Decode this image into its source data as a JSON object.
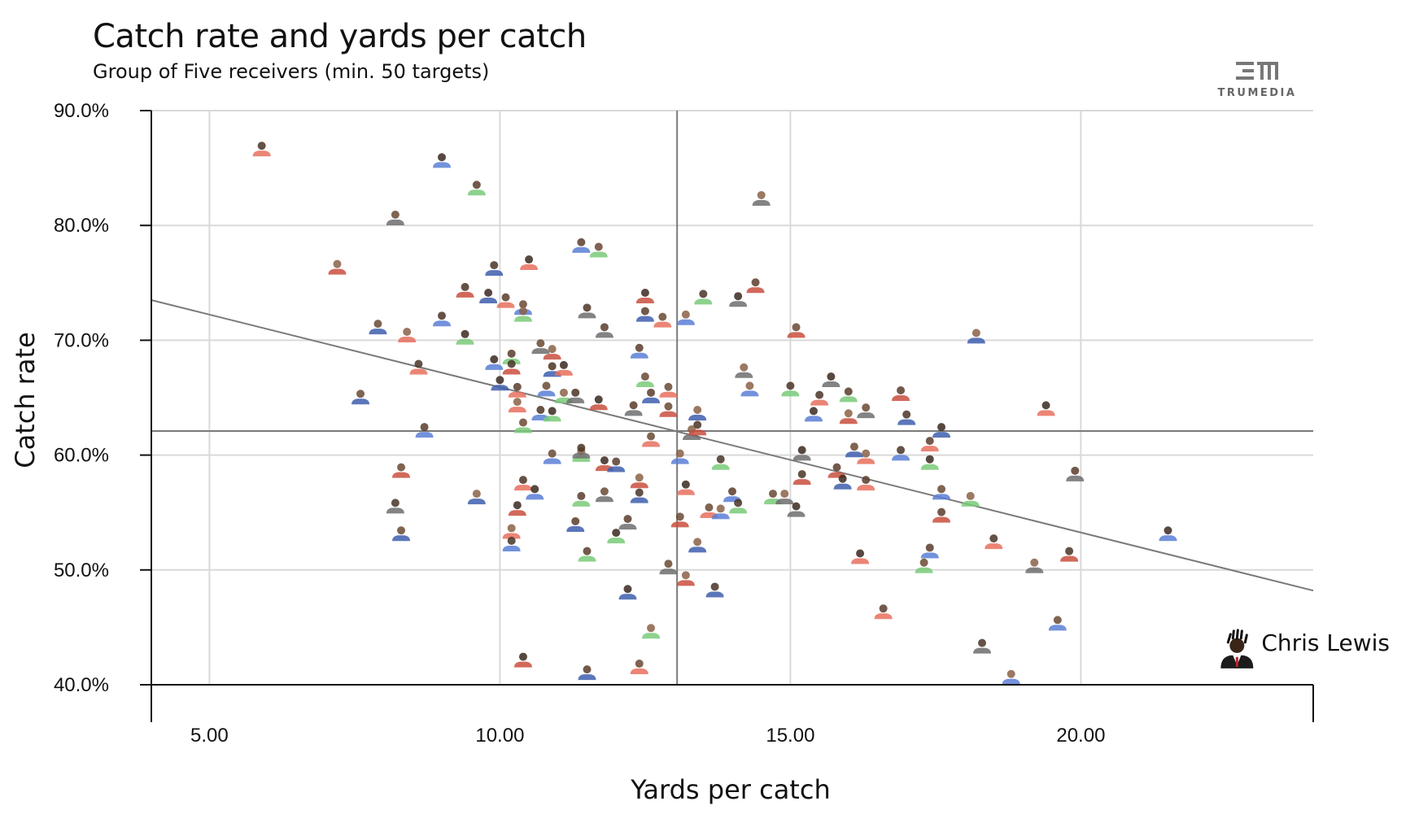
{
  "header": {
    "title": "Catch rate and yards per catch",
    "subtitle": "Group of Five receivers (min. 50 targets)",
    "brand": "TRUMEDIA"
  },
  "colors": {
    "grid": "#d9d9d9",
    "axis": "#111111",
    "reference": "#7a7a7a",
    "trend": "#7a7a7a",
    "jersey_palette": [
      "#e8705f",
      "#5b7fd6",
      "#7acb7a",
      "#6e6e6e",
      "#c94f3f",
      "#3f5fae"
    ]
  },
  "chart_data": {
    "type": "scatter",
    "title": "Catch rate and yards per catch",
    "subtitle": "Group of Five receivers (min. 50 targets)",
    "xlabel": "Yards per catch",
    "ylabel": "Catch rate",
    "xlim": [
      4.0,
      24.0
    ],
    "ylim": [
      40.0,
      90.0
    ],
    "x_ticks": [
      5,
      10,
      15,
      20
    ],
    "x_tick_labels": [
      "5.00",
      "10.00",
      "15.00",
      "20.00"
    ],
    "y_ticks": [
      40,
      50,
      60,
      70,
      80,
      90
    ],
    "y_tick_labels": [
      "40.0%",
      "50.0%",
      "60.0%",
      "70.0%",
      "80.0%",
      "90.0%"
    ],
    "grid": true,
    "reference_lines": {
      "x": 13.05,
      "y": 62.1
    },
    "trendline": {
      "x": [
        4.0,
        24.0
      ],
      "y": [
        73.5,
        48.2
      ]
    },
    "highlight": {
      "name": "Chris Lewis",
      "x": 22.8,
      "y": 42.7
    },
    "points": [
      {
        "x": 5.9,
        "y": 86.3
      },
      {
        "x": 9.0,
        "y": 85.3
      },
      {
        "x": 9.6,
        "y": 82.9
      },
      {
        "x": 8.2,
        "y": 80.3
      },
      {
        "x": 7.2,
        "y": 76.0
      },
      {
        "x": 9.9,
        "y": 75.9
      },
      {
        "x": 10.5,
        "y": 76.4
      },
      {
        "x": 11.4,
        "y": 77.9
      },
      {
        "x": 11.7,
        "y": 77.5
      },
      {
        "x": 14.5,
        "y": 82.0
      },
      {
        "x": 9.4,
        "y": 74.0
      },
      {
        "x": 9.8,
        "y": 73.5
      },
      {
        "x": 10.1,
        "y": 73.1
      },
      {
        "x": 10.4,
        "y": 72.5
      },
      {
        "x": 10.4,
        "y": 71.9
      },
      {
        "x": 11.5,
        "y": 72.2
      },
      {
        "x": 12.5,
        "y": 73.5
      },
      {
        "x": 12.5,
        "y": 71.9
      },
      {
        "x": 12.8,
        "y": 71.4
      },
      {
        "x": 13.2,
        "y": 71.6
      },
      {
        "x": 13.5,
        "y": 73.4
      },
      {
        "x": 14.1,
        "y": 73.2
      },
      {
        "x": 14.4,
        "y": 74.4
      },
      {
        "x": 7.9,
        "y": 70.8
      },
      {
        "x": 8.4,
        "y": 70.1
      },
      {
        "x": 9.0,
        "y": 71.5
      },
      {
        "x": 9.4,
        "y": 69.9
      },
      {
        "x": 11.8,
        "y": 70.5
      },
      {
        "x": 15.1,
        "y": 70.5
      },
      {
        "x": 18.2,
        "y": 70.0
      },
      {
        "x": 8.6,
        "y": 67.3
      },
      {
        "x": 9.9,
        "y": 67.7
      },
      {
        "x": 10.2,
        "y": 68.2
      },
      {
        "x": 10.7,
        "y": 69.1
      },
      {
        "x": 10.9,
        "y": 68.6
      },
      {
        "x": 10.9,
        "y": 67.1
      },
      {
        "x": 11.1,
        "y": 67.2
      },
      {
        "x": 12.4,
        "y": 68.7
      },
      {
        "x": 12.5,
        "y": 66.2
      },
      {
        "x": 14.2,
        "y": 67.0
      },
      {
        "x": 10.2,
        "y": 67.3
      },
      {
        "x": 10.0,
        "y": 65.9
      },
      {
        "x": 10.3,
        "y": 65.3
      },
      {
        "x": 10.8,
        "y": 65.4
      },
      {
        "x": 11.1,
        "y": 64.8
      },
      {
        "x": 11.3,
        "y": 64.8
      },
      {
        "x": 11.7,
        "y": 64.2
      },
      {
        "x": 12.6,
        "y": 64.8
      },
      {
        "x": 12.9,
        "y": 65.3
      },
      {
        "x": 14.3,
        "y": 65.4
      },
      {
        "x": 15.0,
        "y": 65.4
      },
      {
        "x": 15.7,
        "y": 66.2
      },
      {
        "x": 16.9,
        "y": 65.0
      },
      {
        "x": 7.6,
        "y": 64.7
      },
      {
        "x": 10.3,
        "y": 64.0
      },
      {
        "x": 10.7,
        "y": 63.3
      },
      {
        "x": 10.9,
        "y": 63.2
      },
      {
        "x": 12.3,
        "y": 63.7
      },
      {
        "x": 12.9,
        "y": 63.6
      },
      {
        "x": 13.4,
        "y": 63.3
      },
      {
        "x": 15.5,
        "y": 64.6
      },
      {
        "x": 15.4,
        "y": 63.2
      },
      {
        "x": 16.0,
        "y": 64.9
      },
      {
        "x": 16.3,
        "y": 63.5
      },
      {
        "x": 16.0,
        "y": 63.0
      },
      {
        "x": 17.0,
        "y": 62.9
      },
      {
        "x": 19.4,
        "y": 63.7
      },
      {
        "x": 8.7,
        "y": 61.8
      },
      {
        "x": 10.4,
        "y": 62.2
      },
      {
        "x": 13.3,
        "y": 61.6
      },
      {
        "x": 13.4,
        "y": 62.0
      },
      {
        "x": 17.6,
        "y": 61.8
      },
      {
        "x": 17.4,
        "y": 60.6
      },
      {
        "x": 10.9,
        "y": 59.5
      },
      {
        "x": 11.4,
        "y": 59.7
      },
      {
        "x": 11.4,
        "y": 60.0
      },
      {
        "x": 11.8,
        "y": 58.9
      },
      {
        "x": 12.0,
        "y": 58.8
      },
      {
        "x": 12.6,
        "y": 61.0
      },
      {
        "x": 13.1,
        "y": 59.5
      },
      {
        "x": 13.8,
        "y": 59.0
      },
      {
        "x": 15.2,
        "y": 59.8
      },
      {
        "x": 15.8,
        "y": 58.3
      },
      {
        "x": 16.1,
        "y": 60.1
      },
      {
        "x": 16.3,
        "y": 59.5
      },
      {
        "x": 16.9,
        "y": 59.8
      },
      {
        "x": 17.4,
        "y": 59.0
      },
      {
        "x": 19.9,
        "y": 58.0
      },
      {
        "x": 8.3,
        "y": 58.3
      },
      {
        "x": 9.6,
        "y": 56.0
      },
      {
        "x": 10.4,
        "y": 57.2
      },
      {
        "x": 10.6,
        "y": 56.4
      },
      {
        "x": 11.4,
        "y": 55.8
      },
      {
        "x": 11.8,
        "y": 56.2
      },
      {
        "x": 12.4,
        "y": 57.4
      },
      {
        "x": 12.4,
        "y": 56.1
      },
      {
        "x": 13.2,
        "y": 56.8
      },
      {
        "x": 14.0,
        "y": 56.2
      },
      {
        "x": 14.7,
        "y": 56.0
      },
      {
        "x": 14.9,
        "y": 56.0
      },
      {
        "x": 15.2,
        "y": 57.7
      },
      {
        "x": 15.9,
        "y": 57.3
      },
      {
        "x": 16.3,
        "y": 57.2
      },
      {
        "x": 17.6,
        "y": 56.4
      },
      {
        "x": 18.1,
        "y": 55.8
      },
      {
        "x": 8.2,
        "y": 55.2
      },
      {
        "x": 10.3,
        "y": 55.0
      },
      {
        "x": 11.3,
        "y": 53.6
      },
      {
        "x": 13.6,
        "y": 54.8
      },
      {
        "x": 13.8,
        "y": 54.7
      },
      {
        "x": 14.1,
        "y": 55.2
      },
      {
        "x": 15.1,
        "y": 54.9
      },
      {
        "x": 17.6,
        "y": 54.4
      },
      {
        "x": 8.3,
        "y": 52.8
      },
      {
        "x": 10.2,
        "y": 53.0
      },
      {
        "x": 10.2,
        "y": 51.9
      },
      {
        "x": 12.0,
        "y": 52.6
      },
      {
        "x": 12.2,
        "y": 53.8
      },
      {
        "x": 13.1,
        "y": 54.0
      },
      {
        "x": 13.4,
        "y": 51.8
      },
      {
        "x": 18.5,
        "y": 52.1
      },
      {
        "x": 21.5,
        "y": 52.8
      },
      {
        "x": 11.5,
        "y": 51.0
      },
      {
        "x": 12.9,
        "y": 49.9
      },
      {
        "x": 13.2,
        "y": 48.9
      },
      {
        "x": 13.7,
        "y": 47.9
      },
      {
        "x": 16.2,
        "y": 50.8
      },
      {
        "x": 17.4,
        "y": 51.3
      },
      {
        "x": 17.3,
        "y": 50.0
      },
      {
        "x": 19.2,
        "y": 50.0
      },
      {
        "x": 19.8,
        "y": 51.0
      },
      {
        "x": 12.2,
        "y": 47.7
      },
      {
        "x": 16.6,
        "y": 46.0
      },
      {
        "x": 19.6,
        "y": 45.0
      },
      {
        "x": 12.6,
        "y": 44.3
      },
      {
        "x": 18.3,
        "y": 43.0
      },
      {
        "x": 10.4,
        "y": 41.8
      },
      {
        "x": 11.5,
        "y": 40.7
      },
      {
        "x": 12.4,
        "y": 41.2
      },
      {
        "x": 18.8,
        "y": 40.3
      }
    ]
  }
}
